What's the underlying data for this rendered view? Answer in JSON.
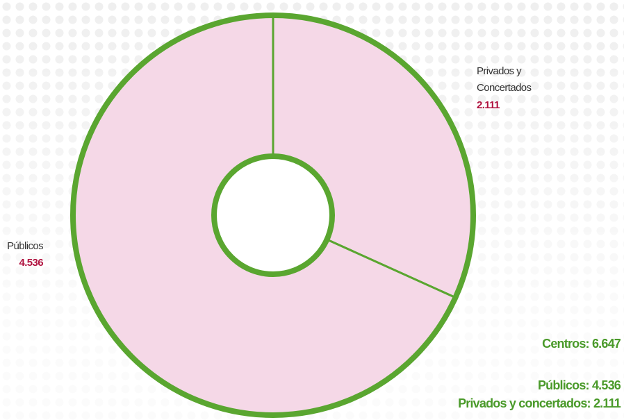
{
  "chart_data": {
    "type": "donut",
    "categories": [
      "Privados y Concertados",
      "Públicos"
    ],
    "values": [
      2111,
      4536
    ],
    "value_labels": [
      "2.111",
      "4.536"
    ],
    "colors": [
      "#f5d8e7",
      "#f5d8e7"
    ],
    "edge_color": "#5aa630",
    "annotations": [
      "Centros: 6.647",
      "Públicos: 4.536",
      "Privados y concertados: 2.111"
    ]
  }
}
